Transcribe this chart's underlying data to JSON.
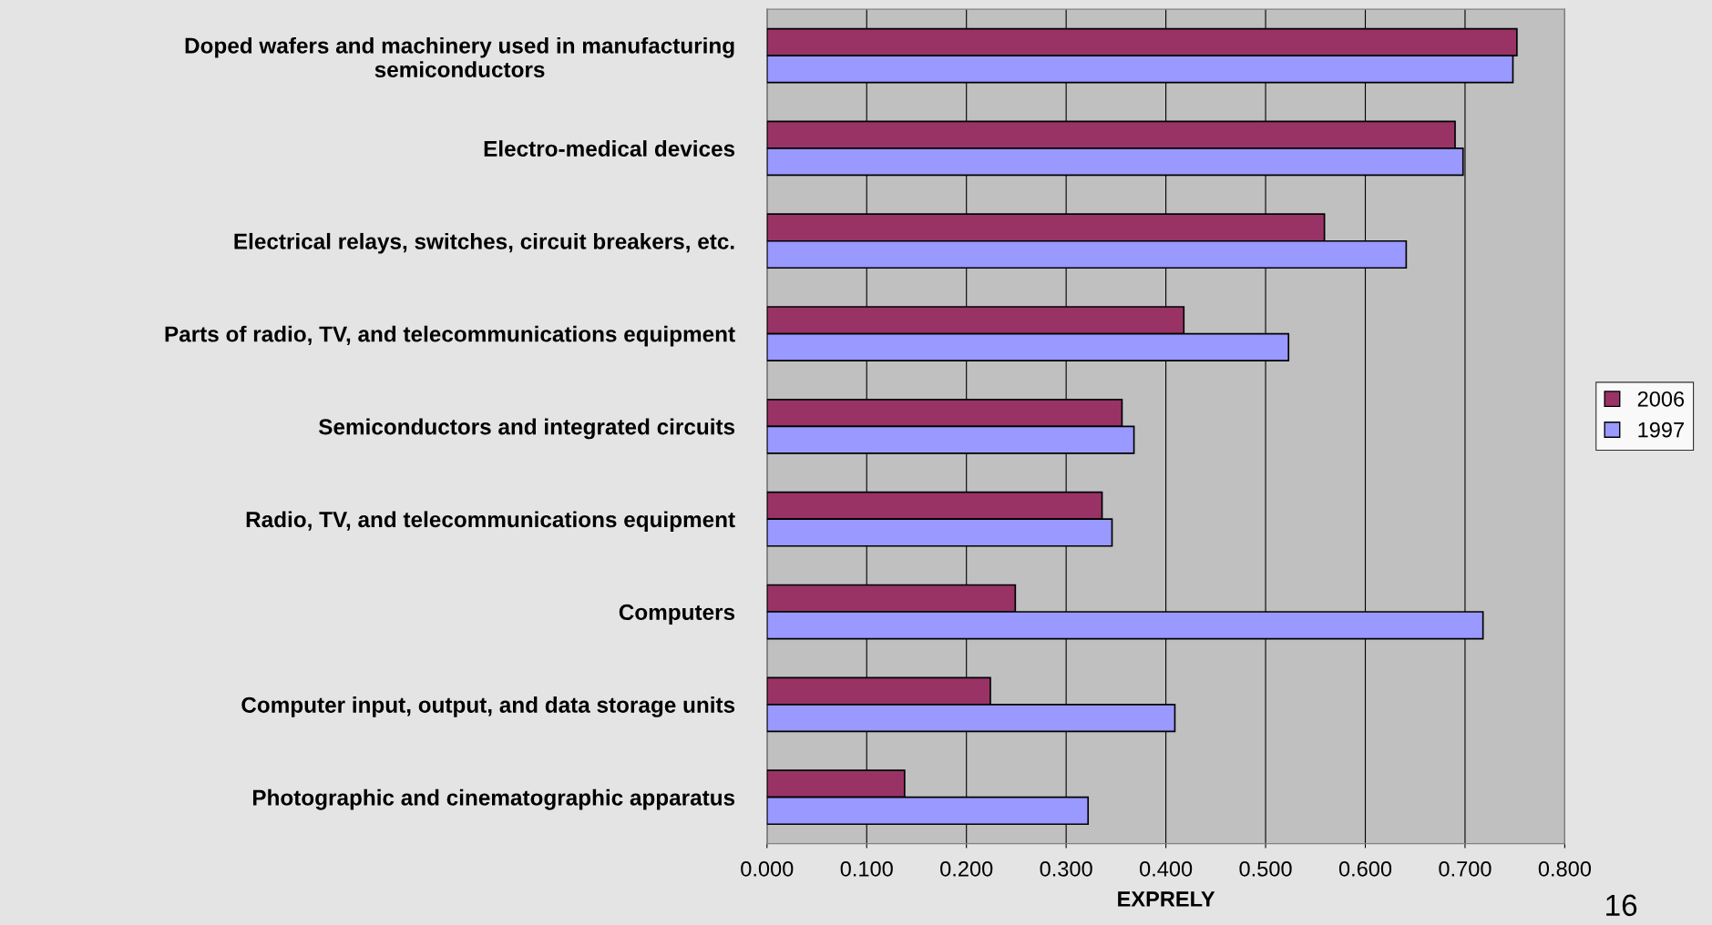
{
  "chart_data": {
    "type": "bar",
    "orientation": "horizontal",
    "xlabel": "EXPRELY",
    "categories": [
      "Doped wafers and machinery used in manufacturing semiconductors",
      "Electro-medical devices",
      "Electrical relays, switches, circuit breakers, etc.",
      "Parts of radio, TV, and telecommunications equipment",
      "Semiconductors and integrated circuits",
      "Radio, TV, and telecommunications equipment",
      "Computers",
      "Computer input, output, and data storage units",
      "Photographic and cinematographic apparatus"
    ],
    "series": [
      {
        "name": "2006",
        "color": "#993366",
        "values": [
          0.752,
          0.69,
          0.559,
          0.418,
          0.356,
          0.336,
          0.249,
          0.224,
          0.138
        ]
      },
      {
        "name": "1997",
        "color": "#9999ff",
        "values": [
          0.748,
          0.698,
          0.641,
          0.523,
          0.368,
          0.346,
          0.718,
          0.409,
          0.322
        ]
      }
    ],
    "xlim": [
      0,
      0.8
    ],
    "xticks": [
      {
        "value": 0,
        "label": "0.000"
      },
      {
        "value": 0.1,
        "label": "0.100"
      },
      {
        "value": 0.2,
        "label": "0.200"
      },
      {
        "value": 0.3,
        "label": "0.300"
      },
      {
        "value": 0.4,
        "label": "0.400"
      },
      {
        "value": 0.5,
        "label": "0.500"
      },
      {
        "value": 0.6,
        "label": "0.600"
      },
      {
        "value": 0.7,
        "label": "0.700"
      },
      {
        "value": 0.8,
        "label": "0.800"
      }
    ],
    "grid": "x",
    "legend": "right",
    "annotations": [
      "16"
    ]
  }
}
